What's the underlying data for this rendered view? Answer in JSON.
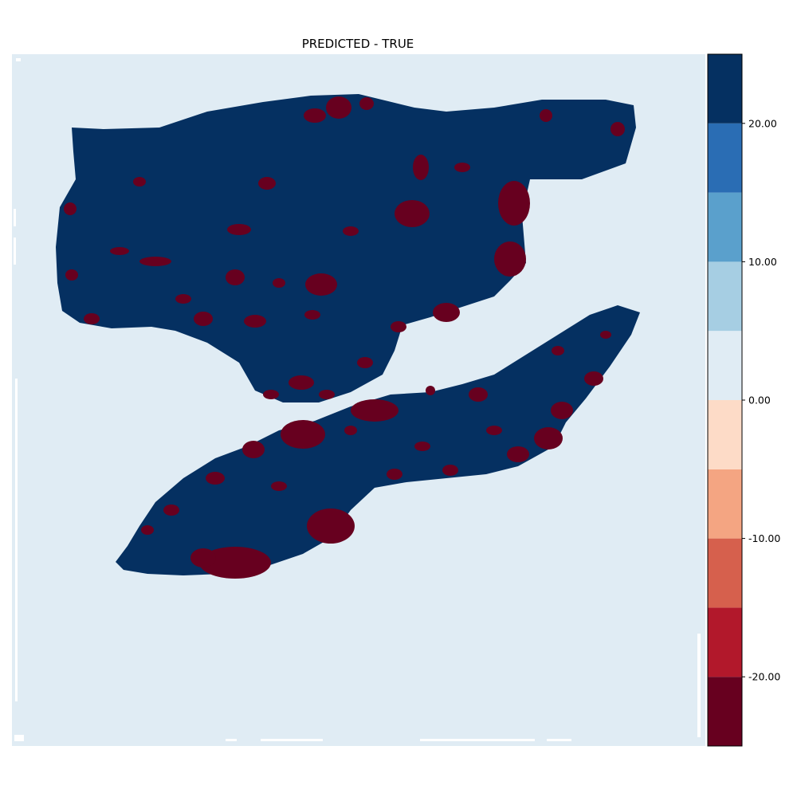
{
  "chart_data": {
    "type": "heatmap",
    "title": "PREDICTED - TRUE",
    "xlabel": "",
    "ylabel": "",
    "axes_visible": false,
    "background_value": 0,
    "colormap": "RdBu (discrete, 10 levels)",
    "colorbar": {
      "position": "right",
      "range": [
        -25,
        25
      ],
      "bounds": [
        -25,
        -20,
        -15,
        -10,
        -5,
        0,
        5,
        10,
        15,
        20,
        25
      ],
      "colors": [
        "#67001f",
        "#b2182b",
        "#d6604d",
        "#f4a582",
        "#fddbc7",
        "#e0ecf4",
        "#a6cee3",
        "#5aa0cc",
        "#2a6db4",
        "#053061"
      ],
      "ticks": [
        -20,
        -10,
        0,
        10,
        20
      ],
      "tick_labels": [
        "-20.00",
        "-10.00",
        "0.00",
        "10.00",
        "20.00"
      ]
    },
    "regions": [
      {
        "value": 25,
        "color": "#053061"
      },
      {
        "value": -25,
        "color": "#67001f"
      }
    ]
  }
}
